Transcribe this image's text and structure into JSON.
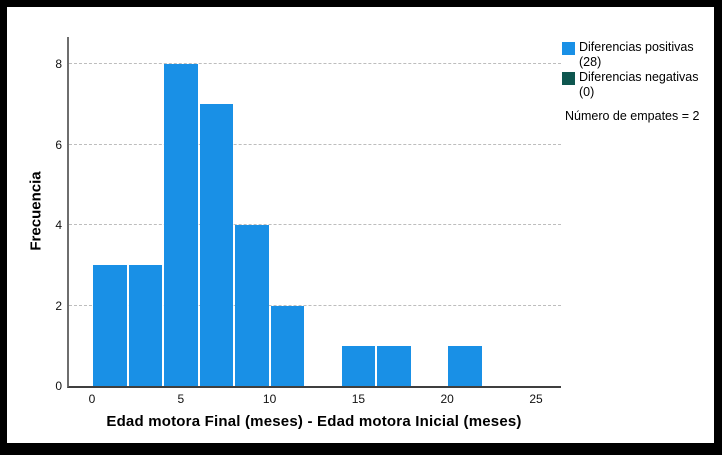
{
  "frame": {
    "border_color": "#000000",
    "background": "#ffffff"
  },
  "chart_data": {
    "type": "bar",
    "subtype": "histogram",
    "title": "",
    "xlabel": "Edad motora Final (meses) - Edad motora Inicial (meses)",
    "ylabel": "Frecuencia",
    "x_ticks": [
      0,
      5,
      10,
      15,
      20,
      25
    ],
    "y_ticks": [
      0,
      2,
      4,
      6,
      8
    ],
    "xlim": [
      -1.3,
      26.4
    ],
    "ylim": [
      0,
      8.7
    ],
    "grid": "horizontal-dashed",
    "bin_width": 2,
    "bars": [
      {
        "x0": 0,
        "x1": 2,
        "value": 3
      },
      {
        "x0": 2,
        "x1": 4,
        "value": 3
      },
      {
        "x0": 4,
        "x1": 6,
        "value": 8
      },
      {
        "x0": 6,
        "x1": 8,
        "value": 7
      },
      {
        "x0": 8,
        "x1": 10,
        "value": 4
      },
      {
        "x0": 10,
        "x1": 12,
        "value": 2
      },
      {
        "x0": 12,
        "x1": 14,
        "value": 0
      },
      {
        "x0": 14,
        "x1": 16,
        "value": 1
      },
      {
        "x0": 16,
        "x1": 18,
        "value": 1
      },
      {
        "x0": 18,
        "x1": 20,
        "value": 0
      },
      {
        "x0": 20,
        "x1": 22,
        "value": 1
      }
    ],
    "bar_color": "#1990E6",
    "colors": {
      "axis_y": "#6e6e6e",
      "axis_x": "#3f3f3f",
      "gridline": "#bdbdbd",
      "text": "#000000"
    },
    "legend": {
      "position": "top-right",
      "items": [
        {
          "label": "Diferencias positivas (28)",
          "color": "#1990E6"
        },
        {
          "label": "Diferencias negativas (0)",
          "color": "#0E564F"
        }
      ],
      "note": "Número de empates = 2"
    }
  }
}
